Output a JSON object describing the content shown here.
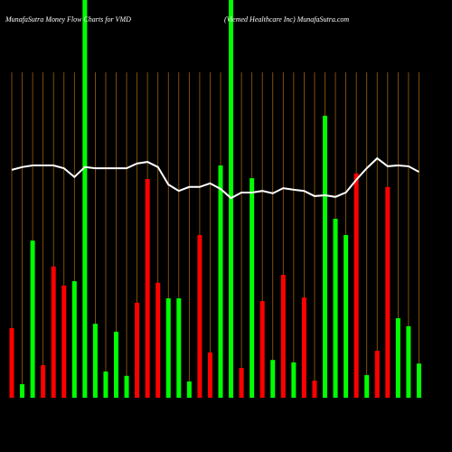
{
  "chart_data": {
    "type": "bar",
    "title": "MunafaSutra  Money Flow  Charts for VMD",
    "subtitle": "(Viemed Healthcare   Inc) MunafaSutra.com",
    "values": [
      17.5,
      3.4,
      39.5,
      8.2,
      33,
      28.2,
      29.3,
      100,
      18.6,
      6.6,
      16.6,
      5.5,
      23.9,
      55,
      28.9,
      25,
      25,
      4.1,
      40.9,
      11.4,
      58.4,
      100,
      7.5,
      55.2,
      24.3,
      9.5,
      30.9,
      8.9,
      25.2,
      4.3,
      70.9,
      45,
      40.9,
      56.4,
      5.7,
      11.8,
      53,
      20,
      18,
      8.6
    ],
    "bar_colors": [
      "#ff0000",
      "#00ff00",
      "#00ff00",
      "#ff0000",
      "#ff0000",
      "#ff0000",
      "#00ff00",
      "#00ff00",
      "#00ff00",
      "#00ff00",
      "#00ff00",
      "#00ff00",
      "#ff0000",
      "#ff0000",
      "#ff0000",
      "#00ff00",
      "#00ff00",
      "#00ff00",
      "#ff0000",
      "#ff0000",
      "#00ff00",
      "#00ff00",
      "#ff0000",
      "#00ff00",
      "#ff0000",
      "#00ff00",
      "#ff0000",
      "#00ff00",
      "#ff0000",
      "#ff0000",
      "#00ff00",
      "#00ff00",
      "#00ff00",
      "#ff0000",
      "#00ff00",
      "#ff0000",
      "#ff0000",
      "#00ff00",
      "#00ff00",
      "#00ff00"
    ],
    "line_values": [
      57.3,
      58,
      58.4,
      58.4,
      58.4,
      57.7,
      55.5,
      58,
      57.7,
      57.7,
      57.7,
      57.7,
      58.9,
      59.3,
      58,
      53.6,
      52,
      53,
      53,
      53.9,
      52.5,
      50.2,
      51.6,
      51.6,
      52,
      51.4,
      52.7,
      52.3,
      52,
      50.7,
      50.9,
      50.5,
      51.6,
      54.8,
      57.7,
      60.2,
      58.2,
      58.4,
      58.2,
      56.8
    ],
    "line_color": "#ffffff",
    "ylim": [
      0,
      100
    ],
    "grid": true,
    "grid_color": "#a0600a"
  }
}
